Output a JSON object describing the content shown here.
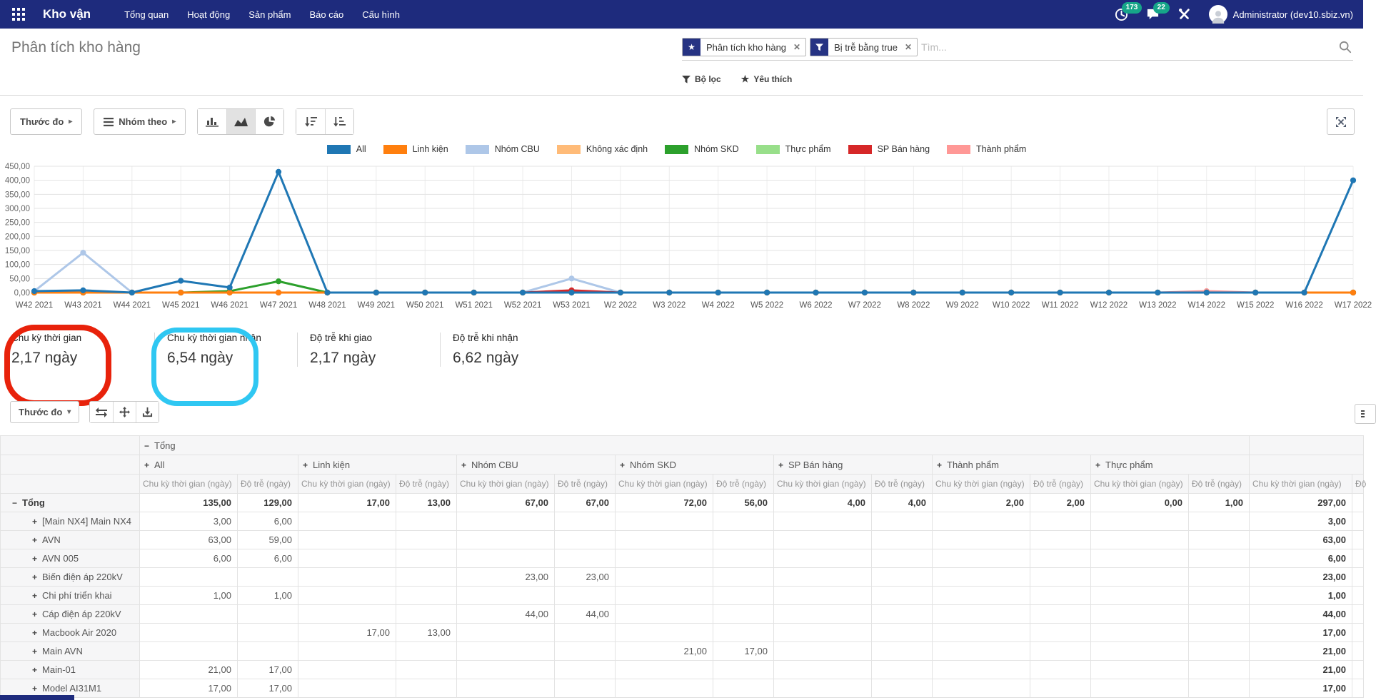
{
  "navbar": {
    "app_title": "Kho vận",
    "menu_items": [
      "Tổng quan",
      "Hoạt động",
      "Sản phẩm",
      "Báo cáo",
      "Cấu hình"
    ],
    "activity_count": "173",
    "message_count": "22",
    "user_name": "Administrator (dev10.sbiz.vn)",
    "bar_color": "#1e2b7d",
    "badge_color": "#16a589"
  },
  "breadcrumb": "Phân tích kho hàng",
  "search": {
    "facets": [
      {
        "icon": "star",
        "label": "Phân tích kho hàng"
      },
      {
        "icon": "filter",
        "label": "Bị trễ bằng true"
      }
    ],
    "placeholder": "Tìm...",
    "filters_button": "Bộ lọc",
    "favorites_button": "Yêu thích"
  },
  "toolbar": {
    "measures_button": "Thước đo",
    "groupby_button": "Nhóm theo"
  },
  "chart_data": {
    "type": "line",
    "title": "",
    "xlabel": "",
    "ylabel": "",
    "ylim": [
      0,
      450
    ],
    "ytick_step": 50,
    "ytick_labels": [
      "0,00",
      "50,00",
      "100,00",
      "150,00",
      "200,00",
      "250,00",
      "300,00",
      "350,00",
      "400,00",
      "450,00"
    ],
    "grid": true,
    "legend_position": "top",
    "categories": [
      "W42 2021",
      "W43 2021",
      "W44 2021",
      "W45 2021",
      "W46 2021",
      "W47 2021",
      "W48 2021",
      "W49 2021",
      "W50 2021",
      "W51 2021",
      "W52 2021",
      "W53 2021",
      "W2 2022",
      "W3 2022",
      "W4 2022",
      "W5 2022",
      "W6 2022",
      "W7 2022",
      "W8 2022",
      "W9 2022",
      "W10 2022",
      "W11 2022",
      "W12 2022",
      "W13 2022",
      "W14 2022",
      "W15 2022",
      "W16 2022",
      "W17 2022"
    ],
    "series": [
      {
        "name": "All",
        "color": "#1f77b4",
        "values": [
          5,
          8,
          0,
          42,
          18,
          430,
          0,
          0,
          0,
          0,
          0,
          0,
          0,
          0,
          0,
          0,
          0,
          0,
          0,
          0,
          0,
          0,
          0,
          0,
          0,
          0,
          0,
          400
        ]
      },
      {
        "name": "Linh kiện",
        "color": "#ff7f0e",
        "values": [
          0,
          0,
          0,
          0,
          0,
          0,
          0,
          0,
          0,
          0,
          0,
          0,
          0,
          0,
          0,
          0,
          0,
          0,
          0,
          0,
          0,
          0,
          0,
          0,
          0,
          0,
          0,
          0
        ]
      },
      {
        "name": "Nhóm CBU",
        "color": "#aec7e8",
        "values": [
          5,
          142,
          0,
          0,
          0,
          0,
          0,
          0,
          0,
          0,
          0,
          50,
          0,
          0,
          0,
          0,
          0,
          0,
          0,
          0,
          0,
          0,
          0,
          0,
          0,
          0,
          0,
          0
        ]
      },
      {
        "name": "Không xác định",
        "color": "#ffbb78",
        "values": [
          0,
          0,
          0,
          0,
          0,
          0,
          0,
          0,
          0,
          0,
          0,
          0,
          0,
          0,
          0,
          0,
          0,
          0,
          0,
          0,
          0,
          0,
          0,
          0,
          0,
          0,
          0,
          0
        ]
      },
      {
        "name": "Nhóm SKD",
        "color": "#2ca02c",
        "values": [
          0,
          0,
          0,
          0,
          5,
          40,
          0,
          0,
          0,
          0,
          0,
          0,
          0,
          0,
          0,
          0,
          0,
          0,
          0,
          0,
          0,
          0,
          0,
          0,
          0,
          0,
          0,
          0
        ]
      },
      {
        "name": "Thực phẩm",
        "color": "#98df8a",
        "values": [
          0,
          0,
          0,
          0,
          0,
          0,
          0,
          0,
          0,
          0,
          0,
          0,
          0,
          0,
          0,
          0,
          0,
          0,
          0,
          0,
          0,
          0,
          0,
          0,
          0,
          0,
          0,
          0
        ]
      },
      {
        "name": "SP Bán hàng",
        "color": "#d62728",
        "values": [
          0,
          0,
          0,
          0,
          0,
          0,
          0,
          0,
          0,
          0,
          0,
          8,
          0,
          0,
          0,
          0,
          0,
          0,
          0,
          0,
          0,
          0,
          0,
          0,
          0,
          0,
          0,
          0
        ]
      },
      {
        "name": "Thành phẩm",
        "color": "#ff9896",
        "values": [
          0,
          0,
          0,
          0,
          0,
          0,
          0,
          0,
          0,
          0,
          0,
          0,
          0,
          0,
          0,
          0,
          0,
          0,
          0,
          0,
          0,
          0,
          0,
          0,
          5,
          0,
          0,
          0
        ]
      }
    ],
    "draw_order": [
      3,
      5,
      7,
      2,
      6,
      4,
      1,
      0
    ]
  },
  "kpis": [
    {
      "label": "Chu kỳ thời gian",
      "value": "2,17 ngày"
    },
    {
      "label": "Chu kỳ thời gian nhận",
      "value": "6,54 ngày"
    },
    {
      "label": "Độ trễ khi giao",
      "value": "2,17 ngày"
    },
    {
      "label": "Độ trễ khi nhận",
      "value": "6,62 ngày"
    }
  ],
  "annotations": [
    {
      "shape": "rounded-rect",
      "color": "#e8220b",
      "target": "kpi-chu-ky-thoi-gian"
    },
    {
      "shape": "rounded-rect",
      "color": "#2fc7f2",
      "target": "kpi-chu-ky-thoi-gian-nhan"
    }
  ],
  "pivot": {
    "measures_button": "Thước đo",
    "top_header": "Tổng",
    "col_groups": [
      "All",
      "Linh kiện",
      "Nhóm CBU",
      "Nhóm SKD",
      "SP Bán hàng",
      "Thành phẩm",
      "Thực phẩm"
    ],
    "measure_labels": [
      "Chu kỳ thời gian (ngày)",
      "Độ trễ (ngày)"
    ],
    "total_measure_label": "Chu kỳ thời gian (ngày)",
    "partial_last_measure": "Độ",
    "rows": [
      {
        "label": "Tổng",
        "toggle": "minus",
        "bold": true,
        "cells": [
          "135,00",
          "129,00",
          "17,00",
          "13,00",
          "67,00",
          "67,00",
          "72,00",
          "56,00",
          "4,00",
          "4,00",
          "2,00",
          "2,00",
          "0,00",
          "1,00"
        ],
        "total": "297,00"
      },
      {
        "label": "[Main NX4] Main NX4",
        "toggle": "plus",
        "cells": [
          "3,00",
          "6,00",
          "",
          "",
          "",
          "",
          "",
          "",
          "",
          "",
          "",
          "",
          "",
          ""
        ],
        "total": "3,00"
      },
      {
        "label": "AVN",
        "toggle": "plus",
        "cells": [
          "63,00",
          "59,00",
          "",
          "",
          "",
          "",
          "",
          "",
          "",
          "",
          "",
          "",
          "",
          ""
        ],
        "total": "63,00"
      },
      {
        "label": "AVN 005",
        "toggle": "plus",
        "cells": [
          "6,00",
          "6,00",
          "",
          "",
          "",
          "",
          "",
          "",
          "",
          "",
          "",
          "",
          "",
          ""
        ],
        "total": "6,00"
      },
      {
        "label": "Biến điện áp 220kV",
        "toggle": "plus",
        "cells": [
          "",
          "",
          "",
          "",
          "23,00",
          "23,00",
          "",
          "",
          "",
          "",
          "",
          "",
          "",
          ""
        ],
        "total": "23,00"
      },
      {
        "label": "Chi phí triển khai",
        "toggle": "plus",
        "cells": [
          "1,00",
          "1,00",
          "",
          "",
          "",
          "",
          "",
          "",
          "",
          "",
          "",
          "",
          "",
          ""
        ],
        "total": "1,00"
      },
      {
        "label": "Cáp điện áp 220kV",
        "toggle": "plus",
        "cells": [
          "",
          "",
          "",
          "",
          "44,00",
          "44,00",
          "",
          "",
          "",
          "",
          "",
          "",
          "",
          ""
        ],
        "total": "44,00"
      },
      {
        "label": "Macbook Air 2020",
        "toggle": "plus",
        "cells": [
          "",
          "",
          "17,00",
          "13,00",
          "",
          "",
          "",
          "",
          "",
          "",
          "",
          "",
          "",
          ""
        ],
        "total": "17,00"
      },
      {
        "label": "Main AVN",
        "toggle": "plus",
        "cells": [
          "",
          "",
          "",
          "",
          "",
          "",
          "21,00",
          "17,00",
          "",
          "",
          "",
          "",
          "",
          ""
        ],
        "total": "21,00"
      },
      {
        "label": "Main-01",
        "toggle": "plus",
        "cells": [
          "21,00",
          "17,00",
          "",
          "",
          "",
          "",
          "",
          "",
          "",
          "",
          "",
          "",
          "",
          ""
        ],
        "total": "21,00"
      },
      {
        "label": "Model AI31M1",
        "toggle": "plus",
        "cells": [
          "17,00",
          "17,00",
          "",
          "",
          "",
          "",
          "",
          "",
          "",
          "",
          "",
          "",
          "",
          ""
        ],
        "total": "17,00"
      }
    ]
  }
}
